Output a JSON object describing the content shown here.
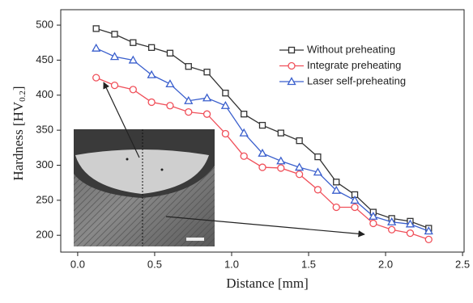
{
  "chart_data": {
    "type": "line",
    "ylabel": [
      "Hardness  [HV",
      "0.2",
      "]"
    ],
    "xlabel": "Distance [mm]",
    "x": [
      0.12,
      0.24,
      0.36,
      0.48,
      0.6,
      0.72,
      0.84,
      0.96,
      1.08,
      1.2,
      1.32,
      1.44,
      1.56,
      1.68,
      1.8,
      1.92,
      2.04,
      2.16,
      2.28
    ],
    "series": [
      {
        "name": "Without preheating",
        "color": "#333333",
        "marker": "square",
        "values": [
          495,
          487,
          475,
          468,
          460,
          441,
          433,
          403,
          373,
          357,
          346,
          335,
          312,
          276,
          258,
          233,
          224,
          220,
          210
        ]
      },
      {
        "name": "Integrate preheating",
        "color": "#f0505a",
        "marker": "circle",
        "values": [
          425,
          414,
          408,
          390,
          385,
          376,
          373,
          345,
          313,
          297,
          296,
          287,
          265,
          240,
          240,
          217,
          208,
          203,
          194
        ]
      },
      {
        "name": "Laser self-preheating",
        "color": "#3a5fcd",
        "marker": "triangle",
        "values": [
          467,
          455,
          450,
          429,
          416,
          392,
          396,
          385,
          346,
          317,
          306,
          297,
          290,
          264,
          250,
          227,
          219,
          216,
          206
        ]
      }
    ],
    "xlim": [
      -0.11,
      2.51
    ],
    "xticks": [
      {
        "value": 0,
        "label": "0.0"
      },
      0.5,
      {
        "value": 1,
        "label": "1.0"
      },
      1.5,
      {
        "value": 2,
        "label": "2.0"
      },
      2.5
    ],
    "ylim": [
      176,
      522
    ],
    "yticks": [
      200,
      250,
      300,
      350,
      400,
      450,
      500
    ],
    "legend": "upper right"
  }
}
